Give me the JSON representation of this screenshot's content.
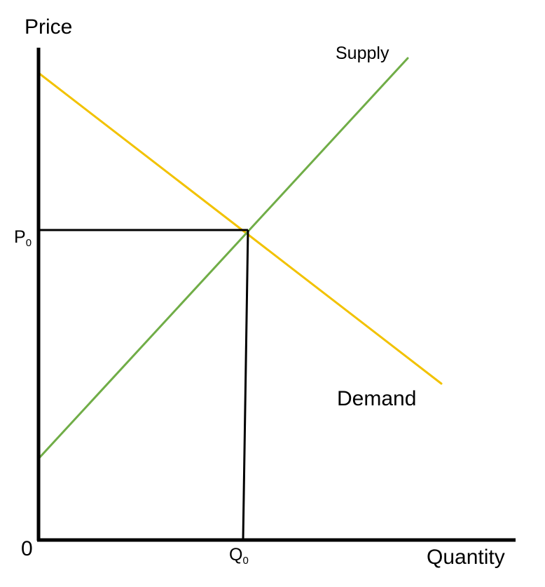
{
  "labels": {
    "y_axis": "Price",
    "x_axis": "Quantity",
    "origin": "0",
    "supply": "Supply",
    "demand": "Demand",
    "p0_main": "P",
    "p0_sub": "0",
    "q0_main": "Q",
    "q0_sub": "0"
  },
  "colors": {
    "axes": "#000000",
    "supply": "#70ad47",
    "demand": "#f2c200",
    "guides": "#000000"
  }
}
